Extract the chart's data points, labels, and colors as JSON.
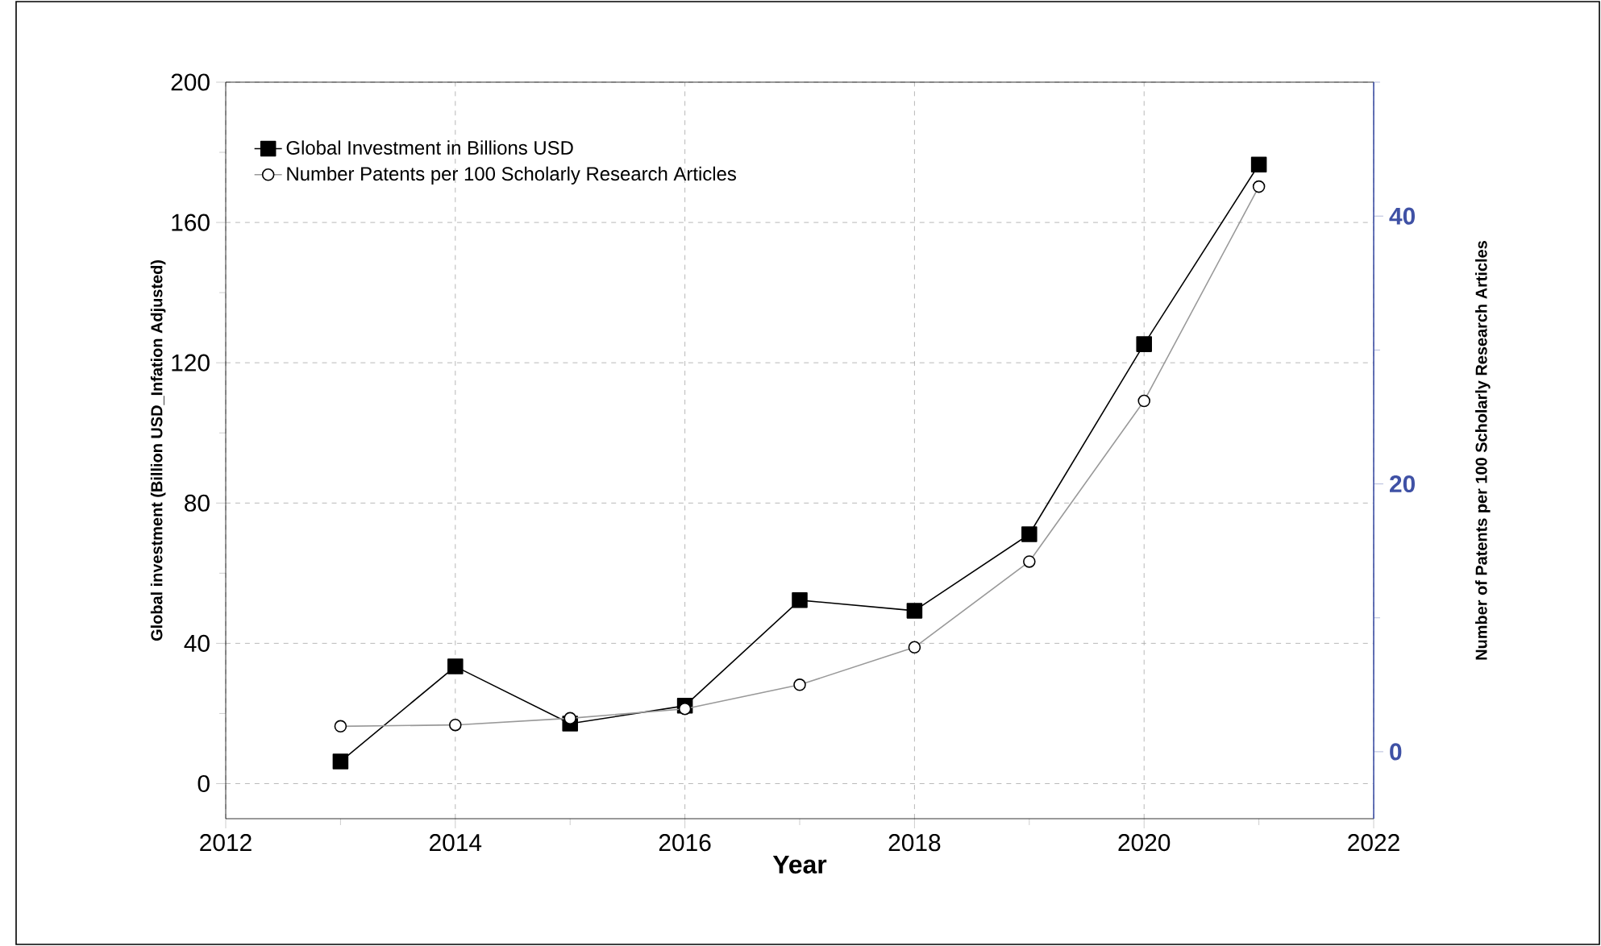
{
  "chart_data": {
    "type": "line",
    "xlabel": "Year",
    "ylabel": "Global investment (Billion USD_Infation Adjusted)",
    "y2label": "Number of Patents per 100 Scholarly Research Articles",
    "x": [
      2013,
      2014,
      2015,
      2016,
      2017,
      2018,
      2019,
      2020,
      2021
    ],
    "series": [
      {
        "name": "Global Investment in Billions USD",
        "color": "#000000",
        "marker": "square",
        "values": [
          6.3,
          33.4,
          17.1,
          22.2,
          52.3,
          49.3,
          71.1,
          125.3,
          176.5
        ]
      },
      {
        "name": "Number Patents per 100 Scholarly Research Articles",
        "color": "#999999",
        "marker": "circle",
        "axis": "y2",
        "values": [
          1.9,
          2.0,
          2.5,
          3.2,
          5.0,
          7.8,
          14.2,
          26.2,
          42.2
        ]
      }
    ],
    "xlim": [
      2012,
      2022
    ],
    "xticks": [
      2012,
      {
        "value": 2013,
        "label": null
      },
      2014,
      {
        "value": 2015,
        "label": null
      },
      2016,
      {
        "value": 2017,
        "label": null
      },
      2018,
      {
        "value": 2019,
        "label": null
      },
      2020,
      {
        "value": 2021,
        "label": null
      },
      2022
    ],
    "ylim": [
      -10,
      200
    ],
    "yticks": [
      0,
      {
        "value": 20,
        "label": null
      },
      40,
      {
        "value": 60,
        "label": null
      },
      80,
      {
        "value": 100,
        "label": null
      },
      120,
      {
        "value": 140,
        "label": null
      },
      160,
      {
        "value": 180,
        "label": null
      },
      200
    ],
    "y2lim": [
      -5,
      50
    ],
    "y2ticks": [
      0,
      {
        "value": 10,
        "label": null
      },
      20,
      {
        "value": 30,
        "label": null
      },
      40,
      {
        "value": 50,
        "label": null
      }
    ],
    "grid": true,
    "legend": "top left",
    "line_style": "solid"
  }
}
